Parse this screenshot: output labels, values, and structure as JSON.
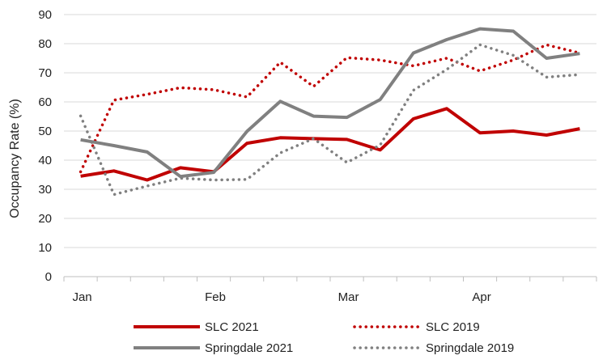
{
  "chart_data": {
    "type": "line",
    "title": "",
    "ylabel": "Occupancy Rate (%)",
    "xlabel": "",
    "ylim": [
      0,
      90
    ],
    "yticks": [
      0,
      10,
      20,
      30,
      40,
      50,
      60,
      70,
      80,
      90
    ],
    "x_month_labels": [
      "Jan",
      "Feb",
      "Mar",
      "Apr"
    ],
    "grid": "horizontal",
    "legend_placement": "bottom",
    "series": [
      {
        "name": "SLC 2021",
        "style": "solid",
        "color": "#c00000",
        "values": [
          34.5,
          36.3,
          33.2,
          37.4,
          36.0,
          45.8,
          47.7,
          47.4,
          47.1,
          43.5,
          54.2,
          57.7,
          49.4,
          50.0,
          48.6,
          50.8
        ]
      },
      {
        "name": "SLC 2019",
        "style": "dotted",
        "color": "#c00000",
        "values": [
          36.0,
          60.6,
          62.6,
          64.9,
          64.2,
          61.7,
          73.6,
          65.3,
          75.2,
          74.4,
          72.4,
          75.0,
          70.6,
          74.4,
          79.6,
          76.8
        ]
      },
      {
        "name": "Springdale 2021",
        "style": "solid",
        "color": "#808080",
        "values": [
          47.0,
          45.0,
          42.8,
          34.4,
          35.8,
          49.9,
          60.2,
          55.1,
          54.7,
          60.8,
          76.8,
          81.4,
          85.1,
          84.3,
          75.0,
          76.6
        ]
      },
      {
        "name": "Springdale 2019",
        "style": "dotted",
        "color": "#808080",
        "values": [
          55.2,
          28.2,
          31.1,
          33.8,
          33.2,
          33.4,
          42.5,
          47.4,
          39.2,
          45.2,
          64.0,
          71.1,
          79.6,
          76.0,
          68.5,
          69.4
        ]
      }
    ]
  }
}
